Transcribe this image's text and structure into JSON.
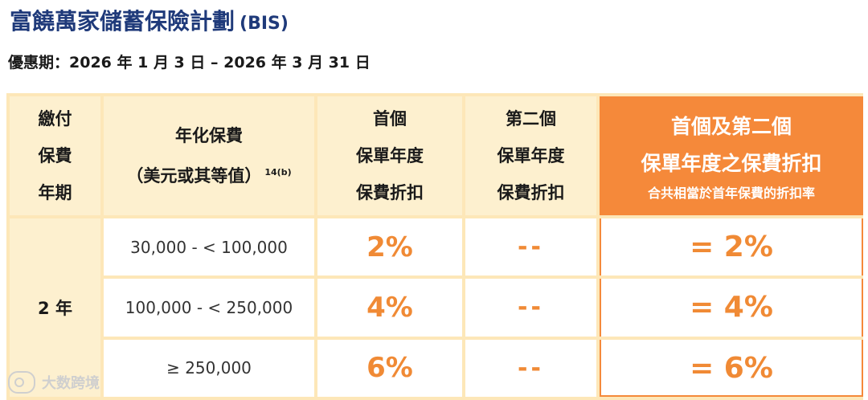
{
  "title": {
    "main": "富饒萬家儲蓄保險計劃",
    "code": "(BIS)"
  },
  "period": "優惠期：2026 年 1 月 3 日 – 2026 年 3 月 31 日",
  "table": {
    "headers": {
      "years": [
        "繳付",
        "保費",
        "年期"
      ],
      "premium": [
        "年化保費",
        "（美元或其等值）"
      ],
      "premium_footnote": "14(b)",
      "first": [
        "首個",
        "保單年度",
        "保費折扣"
      ],
      "second": [
        "第二個",
        "保單年度",
        "保費折扣"
      ],
      "combined": [
        "首個及第二個",
        "保單年度之保費折扣"
      ],
      "combined_sub": "合共相當於首年保費的折扣率"
    },
    "term": "2 年",
    "rows": [
      {
        "range": "30,000 - < 100,000",
        "first": "2%",
        "second": "--",
        "combined": "= 2%"
      },
      {
        "range": "100,000 - < 250,000",
        "first": "4%",
        "second": "--",
        "combined": "= 4%"
      },
      {
        "range": "≥ 250,000",
        "first": "6%",
        "second": "--",
        "combined": "= 6%"
      }
    ]
  },
  "watermark": "大数跨境",
  "colors": {
    "title": "#1f3a7a",
    "accent": "#f5893a",
    "header_bg": "#fdf0cf",
    "border": "#fde7b8"
  }
}
